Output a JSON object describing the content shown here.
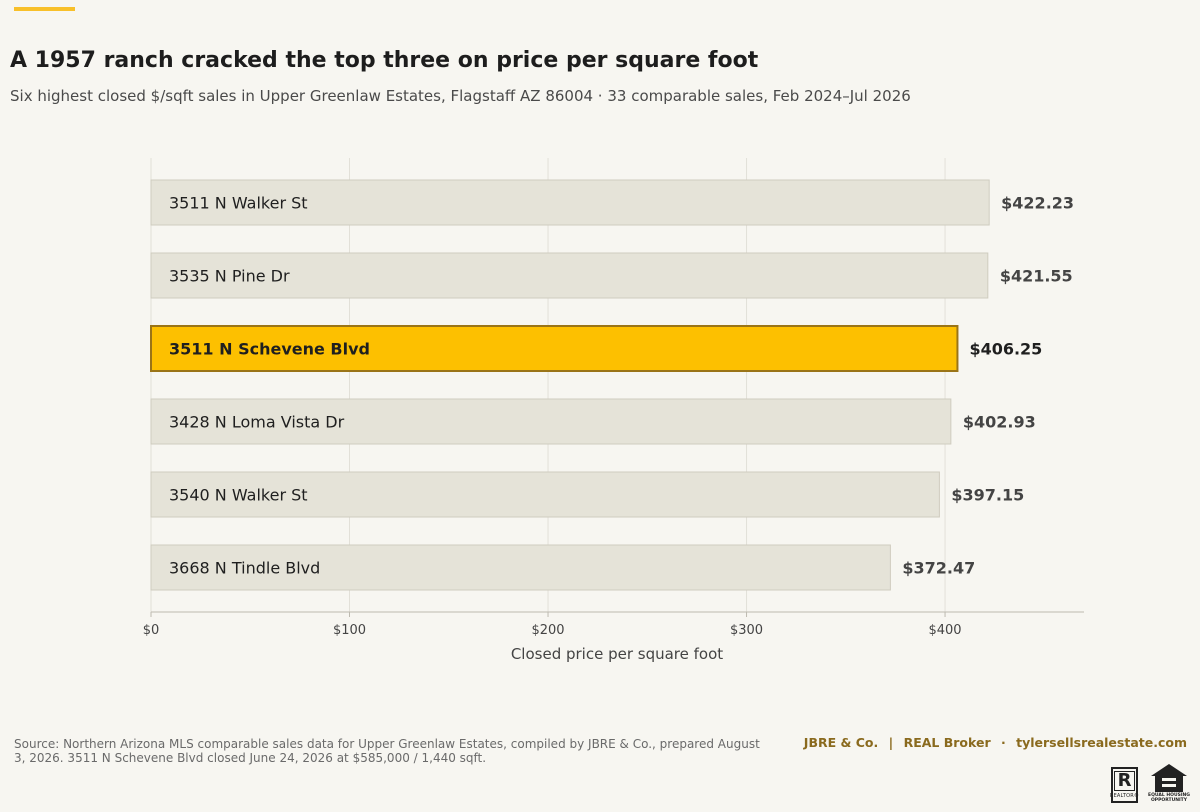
{
  "header": {
    "title": "A 1957 ranch cracked the top three on price per square foot",
    "subtitle": "Six highest closed $/sqft sales in Upper Greenlaw Estates, Flagstaff AZ 86004 · 33 comparable sales, Feb 2024–Jul 2026"
  },
  "chart_data": {
    "type": "bar",
    "orientation": "horizontal",
    "title": "A 1957 ranch cracked the top three on price per square foot",
    "subtitle": "Six highest closed $/sqft sales in Upper Greenlaw Estates, Flagstaff AZ 86004 · 33 comparable sales, Feb 2024–Jul 2026",
    "xlabel": "Closed price per square foot",
    "ylabel": "",
    "categories": [
      "3511 N Walker St",
      "3535 N Pine Dr",
      "3511 N Schevene Blvd",
      "3428 N Loma Vista Dr",
      "3540 N Walker St",
      "3668 N Tindle Blvd"
    ],
    "values": [
      422.23,
      421.55,
      406.25,
      402.93,
      397.15,
      372.47
    ],
    "value_labels": [
      "$422.23",
      "$421.55",
      "$406.25",
      "$402.93",
      "$397.15",
      "$372.47"
    ],
    "highlight_index": 2,
    "xlim": [
      0,
      470
    ],
    "ticks": [
      0,
      100,
      200,
      300,
      400
    ],
    "tick_labels": [
      "$0",
      "$100",
      "$200",
      "$300",
      "$400"
    ],
    "grid": "vertical",
    "legend": "none",
    "colors": {
      "bar": "#e5e3d8",
      "bar_stroke": "#cfccbf",
      "highlight": "#fdc000",
      "highlight_stroke": "#9a7417",
      "grid": "#e2e0d8",
      "axis": "#bdbab0",
      "label": "#1f1f1f",
      "value": "#444444"
    }
  },
  "footer": {
    "source": "Source: Northern Arizona MLS comparable sales data for Upper Greenlaw Estates, compiled by JBRE & Co., prepared August 3, 2026. 3511 N Schevene Blvd closed June 24, 2026 at $585,000 / 1,440 sqft.",
    "brand": "JBRE & Co.",
    "sep1": "|",
    "broker": "REAL Broker",
    "sep2": "·",
    "website": "tylersellsrealestate.com",
    "realtor_letter": "R",
    "realtor_text": "REALTOR®",
    "eho_text": "EQUAL HOUSING OPPORTUNITY"
  }
}
